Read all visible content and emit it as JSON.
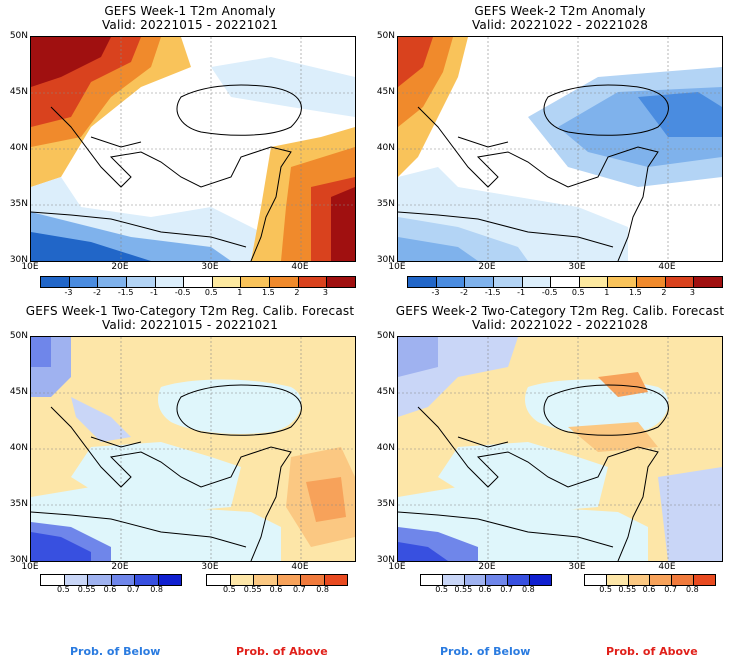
{
  "panels": [
    {
      "title": "GEFS Week-1 T2m Anomaly",
      "valid": "Valid: 20221015 - 20221021"
    },
    {
      "title": "GEFS Week-2 T2m Anomaly",
      "valid": "Valid: 20221022 - 20221028"
    },
    {
      "title": "GEFS Week-1 Two-Category T2m Reg. Calib. Forecast",
      "valid": "Valid: 20221015 - 20221021"
    },
    {
      "title": "GEFS Week-2 Two-Category T2m Reg. Calib. Forecast",
      "valid": "Valid: 20221022 - 20221028"
    }
  ],
  "axes": {
    "lat_ticks": [
      "50N",
      "45N",
      "40N",
      "35N",
      "30N"
    ],
    "lon_ticks": [
      "10E",
      "20E",
      "30E",
      "40E"
    ]
  },
  "anomaly_colorbar": {
    "labels": [
      "-3",
      "-2",
      "-1.5",
      "-1",
      "-0.5",
      "0.5",
      "1",
      "1.5",
      "2",
      "3"
    ],
    "colors": [
      "#2166c8",
      "#4a8ce0",
      "#7fb2ec",
      "#b3d4f5",
      "#dceefb",
      "#ffffff",
      "#fde9a0",
      "#f9c35a",
      "#f08a2c",
      "#d9421e",
      "#a01010"
    ]
  },
  "prob_colorbar_below": {
    "labels": [
      "0.5",
      "0.55",
      "0.6",
      "0.7",
      "0.8"
    ],
    "colors": [
      "#ffffff",
      "#c9d6f7",
      "#9fb2f0",
      "#6f86ea",
      "#3850e0",
      "#1020d0"
    ]
  },
  "prob_colorbar_above": {
    "labels": [
      "0.5",
      "0.55",
      "0.6",
      "0.7",
      "0.8"
    ],
    "colors": [
      "#ffffff",
      "#fde6a8",
      "#fbc882",
      "#f7a25a",
      "#f07a3c",
      "#e84a20"
    ]
  },
  "legend": {
    "below": "Prob. of Below",
    "above": "Prob. of Above",
    "below_color": "#2a7be0",
    "above_color": "#e0201a"
  }
}
